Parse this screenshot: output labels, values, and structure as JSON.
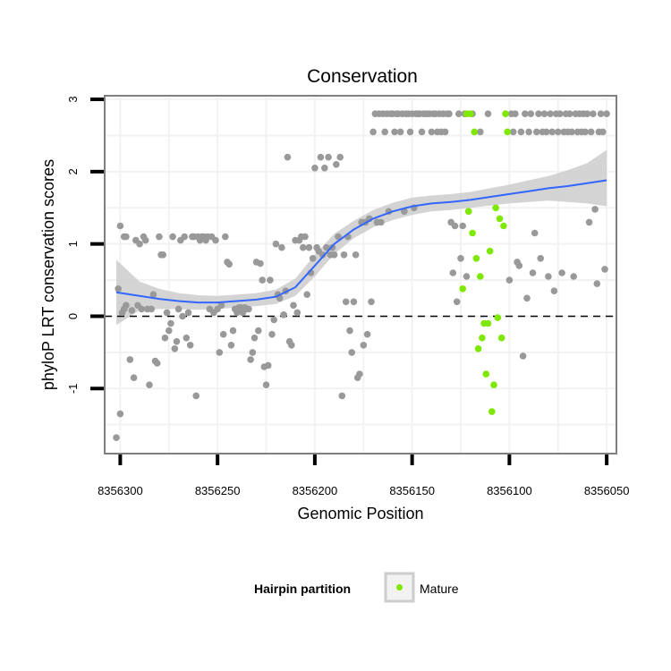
{
  "chart_data": {
    "type": "scatter",
    "title": "Conservation",
    "xlabel": "Genomic Position",
    "ylabel": "phyloP LRT conservation scores",
    "x_reversed": true,
    "xlim": [
      8356045,
      8356308
    ],
    "ylim": [
      -1.9,
      3.05
    ],
    "x_ticks": [
      {
        "value": 8356300,
        "label": "8356300"
      },
      {
        "value": 8356250,
        "label": "8356250"
      },
      {
        "value": 8356200,
        "label": "8356200"
      },
      {
        "value": 8356150,
        "label": "8356150"
      },
      {
        "value": 8356100,
        "label": "8356100"
      },
      {
        "value": 8356050,
        "label": "8356050"
      }
    ],
    "y_ticks": [
      {
        "value": -1,
        "label": "-1"
      },
      {
        "value": 0,
        "label": "0"
      },
      {
        "value": 1,
        "label": "1"
      },
      {
        "value": 2,
        "label": "2"
      },
      {
        "value": 3,
        "label": "3"
      }
    ],
    "reference_line": {
      "y": 0,
      "style": "dashed"
    },
    "colors": {
      "other": "#999999",
      "mature": "#7FE800",
      "smooth_line": "#3366FF",
      "ribbon": "#cccccc",
      "grid": "#f2f2f2",
      "frame": "#7f7f7f"
    },
    "legend": {
      "title": "Hairpin partition",
      "entries": [
        {
          "label": "Mature",
          "color": "#7FE800"
        }
      ],
      "position": "bottom"
    },
    "series": [
      {
        "name": "Other",
        "color": "#999999",
        "points": [
          [
            8356302,
            -1.68
          ],
          [
            8356300,
            -1.35
          ],
          [
            8356301,
            0.38
          ],
          [
            8356300,
            1.25
          ],
          [
            8356298,
            1.1
          ],
          [
            8356297,
            1.1
          ],
          [
            8356299,
            0.05
          ],
          [
            8356298,
            0.1
          ],
          [
            8356297,
            0.15
          ],
          [
            8356295,
            -0.6
          ],
          [
            8356294,
            0.08
          ],
          [
            8356293,
            -0.85
          ],
          [
            8356292,
            1.05
          ],
          [
            8356291,
            0.15
          ],
          [
            8356290,
            1.0
          ],
          [
            8356289,
            0.1
          ],
          [
            8356288,
            1.1
          ],
          [
            8356287,
            1.05
          ],
          [
            8356286,
            0.1
          ],
          [
            8356285,
            -0.95
          ],
          [
            8356284,
            0.1
          ],
          [
            8356283,
            0.3
          ],
          [
            8356282,
            -0.62
          ],
          [
            8356281,
            -0.65
          ],
          [
            8356280,
            1.1
          ],
          [
            8356279,
            0.85
          ],
          [
            8356278,
            0.85
          ],
          [
            8356277,
            -0.3
          ],
          [
            8356276,
            0.05
          ],
          [
            8356275,
            -0.2
          ],
          [
            8356274,
            -0.1
          ],
          [
            8356273,
            1.1
          ],
          [
            8356272,
            -0.45
          ],
          [
            8356271,
            -0.35
          ],
          [
            8356270,
            0.1
          ],
          [
            8356269,
            1.05
          ],
          [
            8356268,
            0.0
          ],
          [
            8356267,
            1.1
          ],
          [
            8356266,
            -0.3
          ],
          [
            8356265,
            0.05
          ],
          [
            8356264,
            -0.4
          ],
          [
            8356263,
            1.1
          ],
          [
            8356262,
            1.1
          ],
          [
            8356261,
            -1.1
          ],
          [
            8356260,
            1.1
          ],
          [
            8356259,
            1.05
          ],
          [
            8356258,
            1.1
          ],
          [
            8356257,
            1.1
          ],
          [
            8356256,
            1.05
          ],
          [
            8356255,
            1.1
          ],
          [
            8356254,
            0.1
          ],
          [
            8356253,
            1.1
          ],
          [
            8356252,
            0.05
          ],
          [
            8356251,
            1.05
          ],
          [
            8356250,
            0.1
          ],
          [
            8356249,
            -0.5
          ],
          [
            8356248,
            0.15
          ],
          [
            8356247,
            -0.25
          ],
          [
            8356246,
            1.1
          ],
          [
            8356245,
            0.75
          ],
          [
            8356244,
            0.72
          ],
          [
            8356243,
            -0.4
          ],
          [
            8356242,
            -0.2
          ],
          [
            8356241,
            0.1
          ],
          [
            8356240,
            0.05
          ],
          [
            8356239,
            0.12
          ],
          [
            8356238,
            0.12
          ],
          [
            8356237,
            0.05
          ],
          [
            8356236,
            0.12
          ],
          [
            8356235,
            0.1
          ],
          [
            8356234,
            0.1
          ],
          [
            8356233,
            -0.6
          ],
          [
            8356232,
            -0.5
          ],
          [
            8356231,
            -0.3
          ],
          [
            8356230,
            0.75
          ],
          [
            8356229,
            -0.2
          ],
          [
            8356228,
            0.73
          ],
          [
            8356227,
            0.5
          ],
          [
            8356226,
            -0.7
          ],
          [
            8356225,
            -0.95
          ],
          [
            8356224,
            -0.68
          ],
          [
            8356223,
            0.5
          ],
          [
            8356222,
            -0.25
          ],
          [
            8356221,
            -0.05
          ],
          [
            8356220,
            1.0
          ],
          [
            8356219,
            0.3
          ],
          [
            8356218,
            0.25
          ],
          [
            8356217,
            0.95
          ],
          [
            8356216,
            0.02
          ],
          [
            8356215,
            0.35
          ],
          [
            8356214,
            2.2
          ],
          [
            8356213,
            -0.35
          ],
          [
            8356212,
            -0.4
          ],
          [
            8356211,
            0.15
          ],
          [
            8356210,
            1.05
          ],
          [
            8356209,
            0.05
          ],
          [
            8356208,
            1.05
          ],
          [
            8356207,
            1.1
          ],
          [
            8356206,
            0.95
          ],
          [
            8356205,
            1.1
          ],
          [
            8356204,
            0.3
          ],
          [
            8356203,
            0.95
          ],
          [
            8356202,
            0.6
          ],
          [
            8356201,
            0.8
          ],
          [
            8356200,
            2.05
          ],
          [
            8356199,
            0.95
          ],
          [
            8356198,
            0.9
          ],
          [
            8356197,
            2.2
          ],
          [
            8356196,
            0.85
          ],
          [
            8356195,
            2.05
          ],
          [
            8356194,
            0.95
          ],
          [
            8356193,
            2.2
          ],
          [
            8356192,
            0.85
          ],
          [
            8356191,
            0.95
          ],
          [
            8356190,
            0.85
          ],
          [
            8356189,
            2.1
          ],
          [
            8356188,
            1.1
          ],
          [
            8356187,
            2.2
          ],
          [
            8356186,
            -1.1
          ],
          [
            8356185,
            0.85
          ],
          [
            8356184,
            0.2
          ],
          [
            8356183,
            1.1
          ],
          [
            8356182,
            -0.2
          ],
          [
            8356181,
            -0.5
          ],
          [
            8356180,
            0.2
          ],
          [
            8356179,
            0.85
          ],
          [
            8356178,
            -0.85
          ],
          [
            8356177,
            -0.8
          ],
          [
            8356176,
            1.3
          ],
          [
            8356175,
            -0.4
          ],
          [
            8356174,
            1.3
          ],
          [
            8356173,
            -0.25
          ],
          [
            8356172,
            1.35
          ],
          [
            8356171,
            0.2
          ],
          [
            8356170,
            2.55
          ],
          [
            8356169,
            2.8
          ],
          [
            8356168,
            1.3
          ],
          [
            8356167,
            2.8
          ],
          [
            8356166,
            1.3
          ],
          [
            8356165,
            2.8
          ],
          [
            8356164,
            2.55
          ],
          [
            8356163,
            2.8
          ],
          [
            8356162,
            1.45
          ],
          [
            8356161,
            2.8
          ],
          [
            8356160,
            2.8
          ],
          [
            8356159,
            2.55
          ],
          [
            8356158,
            2.8
          ],
          [
            8356157,
            2.8
          ],
          [
            8356156,
            2.55
          ],
          [
            8356155,
            2.8
          ],
          [
            8356154,
            1.45
          ],
          [
            8356153,
            2.8
          ],
          [
            8356152,
            2.8
          ],
          [
            8356151,
            2.55
          ],
          [
            8356150,
            2.8
          ],
          [
            8356149,
            1.5
          ],
          [
            8356148,
            2.8
          ],
          [
            8356147,
            2.8
          ],
          [
            8356146,
            2.8
          ],
          [
            8356145,
            2.55
          ],
          [
            8356144,
            2.8
          ],
          [
            8356143,
            2.8
          ],
          [
            8356142,
            2.8
          ],
          [
            8356141,
            2.8
          ],
          [
            8356140,
            2.55
          ],
          [
            8356139,
            2.8
          ],
          [
            8356138,
            2.8
          ],
          [
            8356137,
            2.55
          ],
          [
            8356136,
            2.8
          ],
          [
            8356135,
            2.55
          ],
          [
            8356134,
            2.8
          ],
          [
            8356133,
            2.55
          ],
          [
            8356132,
            2.8
          ],
          [
            8356131,
            2.8
          ],
          [
            8356130,
            1.3
          ],
          [
            8356129,
            0.6
          ],
          [
            8356128,
            1.25
          ],
          [
            8356127,
            0.2
          ],
          [
            8356126,
            2.8
          ],
          [
            8356125,
            0.8
          ],
          [
            8356124,
            1.25
          ],
          [
            8356123,
            2.8
          ],
          [
            8356122,
            0.55
          ],
          [
            8356121,
            1.45
          ],
          [
            8356119,
            2.8
          ],
          [
            8356115,
            2.55
          ],
          [
            8356111,
            2.8
          ],
          [
            8356100,
            0.5
          ],
          [
            8356099,
            2.8
          ],
          [
            8356098,
            2.55
          ],
          [
            8356097,
            2.8
          ],
          [
            8356096,
            0.75
          ],
          [
            8356095,
            0.7
          ],
          [
            8356094,
            2.55
          ],
          [
            8356093,
            -0.55
          ],
          [
            8356092,
            2.8
          ],
          [
            8356091,
            0.25
          ],
          [
            8356090,
            2.55
          ],
          [
            8356089,
            2.8
          ],
          [
            8356088,
            0.6
          ],
          [
            8356087,
            1.15
          ],
          [
            8356086,
            2.55
          ],
          [
            8356085,
            2.8
          ],
          [
            8356084,
            0.8
          ],
          [
            8356083,
            2.55
          ],
          [
            8356082,
            2.8
          ],
          [
            8356081,
            2.55
          ],
          [
            8356080,
            0.55
          ],
          [
            8356079,
            2.8
          ],
          [
            8356078,
            2.55
          ],
          [
            8356077,
            0.35
          ],
          [
            8356076,
            2.8
          ],
          [
            8356075,
            2.55
          ],
          [
            8356074,
            2.8
          ],
          [
            8356073,
            0.6
          ],
          [
            8356072,
            2.55
          ],
          [
            8356071,
            2.8
          ],
          [
            8356070,
            2.55
          ],
          [
            8356069,
            2.8
          ],
          [
            8356068,
            2.55
          ],
          [
            8356067,
            0.55
          ],
          [
            8356066,
            2.8
          ],
          [
            8356065,
            2.55
          ],
          [
            8356064,
            2.8
          ],
          [
            8356063,
            2.55
          ],
          [
            8356062,
            2.8
          ],
          [
            8356061,
            2.55
          ],
          [
            8356060,
            2.8
          ],
          [
            8356059,
            1.3
          ],
          [
            8356058,
            2.55
          ],
          [
            8356057,
            2.8
          ],
          [
            8356056,
            1.48
          ],
          [
            8356055,
            0.45
          ],
          [
            8356054,
            2.55
          ],
          [
            8356053,
            2.8
          ],
          [
            8356052,
            2.55
          ],
          [
            8356051,
            0.65
          ],
          [
            8356050,
            2.8
          ]
        ]
      },
      {
        "name": "Mature",
        "color": "#7FE800",
        "points": [
          [
            8356124,
            0.38
          ],
          [
            8356122,
            2.8
          ],
          [
            8356121,
            1.45
          ],
          [
            8356120,
            2.8
          ],
          [
            8356119,
            1.15
          ],
          [
            8356118,
            2.55
          ],
          [
            8356117,
            0.8
          ],
          [
            8356116,
            -0.45
          ],
          [
            8356115,
            0.55
          ],
          [
            8356114,
            -0.3
          ],
          [
            8356113,
            -0.1
          ],
          [
            8356112,
            -0.8
          ],
          [
            8356111,
            -0.1
          ],
          [
            8356110,
            0.9
          ],
          [
            8356109,
            -1.32
          ],
          [
            8356108,
            -0.95
          ],
          [
            8356107,
            1.5
          ],
          [
            8356106,
            -0.02
          ],
          [
            8356105,
            1.35
          ],
          [
            8356104,
            -0.3
          ],
          [
            8356103,
            1.25
          ],
          [
            8356102,
            2.8
          ],
          [
            8356101,
            2.55
          ]
        ]
      }
    ],
    "smooth": {
      "x": [
        8356302,
        8356290,
        8356280,
        8356270,
        8356260,
        8356250,
        8356240,
        8356230,
        8356220,
        8356210,
        8356200,
        8356190,
        8356180,
        8356170,
        8356160,
        8356150,
        8356140,
        8356130,
        8356120,
        8356110,
        8356100,
        8356090,
        8356080,
        8356070,
        8356060,
        8356050
      ],
      "y": [
        0.33,
        0.28,
        0.24,
        0.21,
        0.19,
        0.19,
        0.21,
        0.23,
        0.27,
        0.4,
        0.7,
        1.0,
        1.2,
        1.35,
        1.45,
        1.52,
        1.56,
        1.58,
        1.61,
        1.65,
        1.69,
        1.73,
        1.77,
        1.8,
        1.84,
        1.88
      ],
      "lower": [
        -0.12,
        0.08,
        0.1,
        0.1,
        0.09,
        0.1,
        0.12,
        0.14,
        0.17,
        0.28,
        0.55,
        0.86,
        1.08,
        1.23,
        1.33,
        1.4,
        1.45,
        1.47,
        1.5,
        1.53,
        1.56,
        1.58,
        1.6,
        1.58,
        1.56,
        1.52
      ],
      "upper": [
        0.78,
        0.48,
        0.38,
        0.32,
        0.29,
        0.28,
        0.3,
        0.32,
        0.37,
        0.52,
        0.85,
        1.14,
        1.32,
        1.47,
        1.57,
        1.64,
        1.67,
        1.69,
        1.72,
        1.77,
        1.82,
        1.88,
        1.94,
        2.02,
        2.12,
        2.3
      ]
    }
  }
}
